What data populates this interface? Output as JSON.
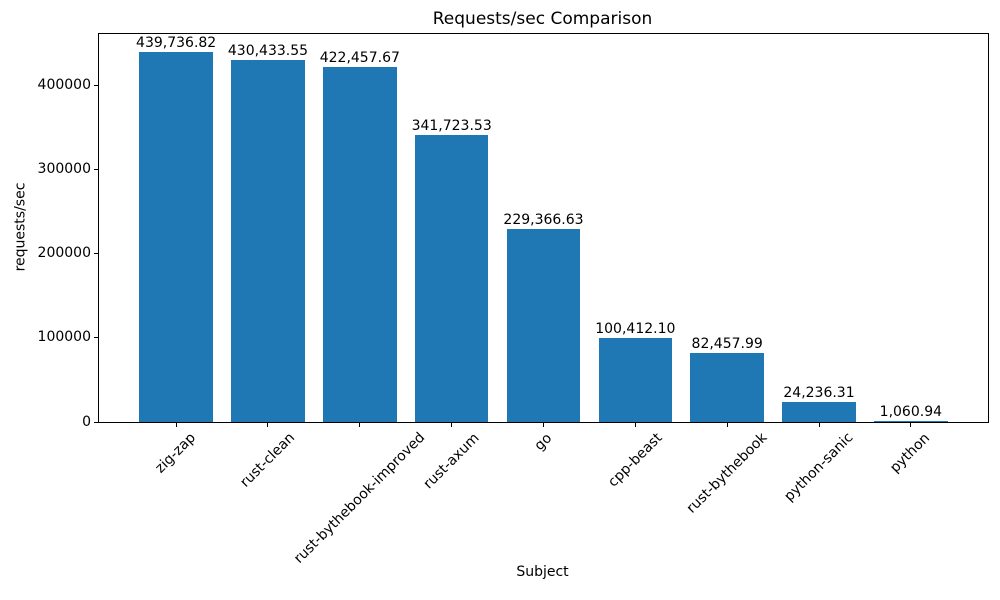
{
  "chart_data": {
    "type": "bar",
    "title": "Requests/sec Comparison",
    "xlabel": "Subject",
    "ylabel": "requests/sec",
    "categories": [
      "zig-zap",
      "rust-clean",
      "rust-bythebook-improved",
      "rust-axum",
      "go",
      "cpp-beast",
      "rust-bythebook",
      "python-sanic",
      "python"
    ],
    "values": [
      439736.82,
      430433.55,
      422457.67,
      341723.53,
      229366.63,
      100412.1,
      82457.99,
      24236.31,
      1060.94
    ],
    "value_labels": [
      "439,736.82",
      "430,433.55",
      "422,457.67",
      "341,723.53",
      "229,366.63",
      "100,412.10",
      "82,457.99",
      "24,236.31",
      "1,060.94"
    ],
    "yticks": [
      0,
      100000,
      200000,
      300000,
      400000
    ],
    "ytick_labels": [
      "0",
      "100000",
      "200000",
      "300000",
      "400000"
    ],
    "ylim": [
      0,
      461723.66
    ],
    "xlim": [
      -0.84,
      8.84
    ],
    "bar_width_units": 0.8,
    "bar_color": "#1f77b4",
    "x_tick_rotation_deg": 45,
    "grid": false,
    "legend_position": "none"
  }
}
